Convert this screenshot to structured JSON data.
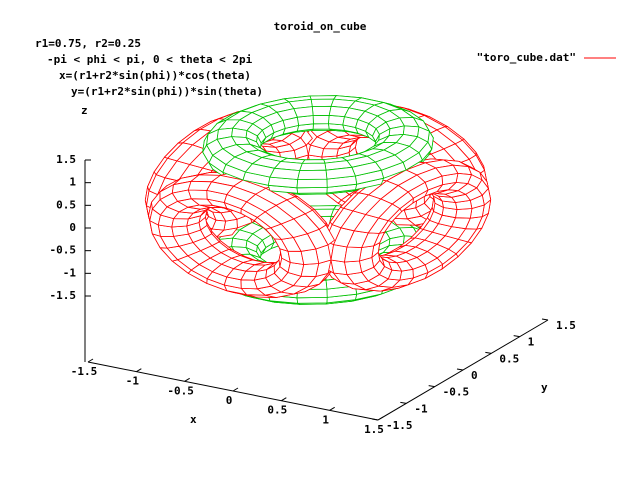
{
  "chart_data": {
    "type": "surface3d",
    "title": "toroid_on_cube",
    "annotations": [
      "r1=0.75, r2=0.25",
      "-pi < phi < pi, 0 < theta < 2pi",
      "x=(r1+r2*sin(phi))*cos(theta)",
      "y=(r1+r2*sin(phi))*sin(theta)"
    ],
    "series": [
      {
        "name": "\"toro_cube.dat\"",
        "color": "#ff0000",
        "color2": "#00c000"
      }
    ],
    "xlabel": "x",
    "ylabel": "y",
    "zlabel": "z",
    "xlim": [
      -1.5,
      1.5
    ],
    "ylim": [
      -1.5,
      1.5
    ],
    "zlim": [
      -1.5,
      1.5
    ],
    "xticks": [
      -1.5,
      -1,
      -0.5,
      0,
      0.5,
      1,
      1.5
    ],
    "yticks": [
      -1.5,
      -1,
      -0.5,
      0,
      0.5,
      1,
      1.5
    ],
    "zticks": [
      -1.5,
      -1,
      -0.5,
      0,
      0.5,
      1,
      1.5
    ],
    "hidden3d": true
  }
}
